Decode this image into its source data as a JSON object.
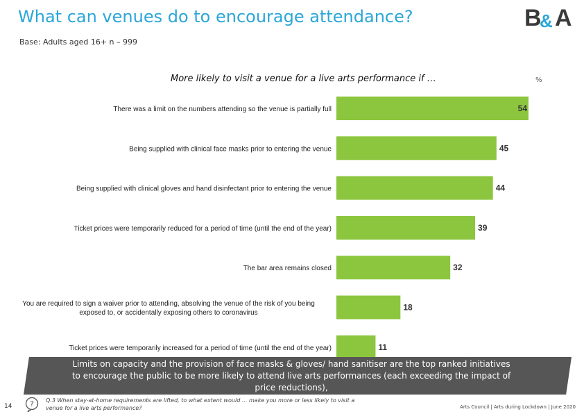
{
  "header": {
    "title": "What can venues do to encourage attendance?",
    "subtitle": "Base: Adults aged 16+ n – 999",
    "logo": "B&A"
  },
  "colors": {
    "title": "#2aa7d8",
    "bar": "#8cc63f",
    "callout": "#565656"
  },
  "chart_data": {
    "type": "bar",
    "orientation": "horizontal",
    "title": "More likely to visit a venue for a live arts performance if …",
    "unit_label": "%",
    "xlim": [
      0,
      54
    ],
    "categories": [
      "There was a limit on the numbers attending so the venue is partially full",
      "Being supplied with clinical face masks prior to entering the venue",
      "Being supplied with clinical gloves and hand disinfectant prior to entering the venue",
      "Ticket prices were temporarily reduced for a period of time (until the end of the year)",
      "The bar area remains closed",
      "You are required to sign a waiver prior to attending, absolving the venue of the risk of you being exposed to, or accidentally exposing others to coronavirus",
      "Ticket prices were temporarily increased for a period of time (until the end of the year)"
    ],
    "category_lines": [
      [
        "There was a limit on the numbers attending so the venue is partially full"
      ],
      [
        "Being supplied with clinical face masks prior to entering the venue"
      ],
      [
        "Being supplied with clinical gloves and hand disinfectant prior to entering the venue"
      ],
      [
        "Ticket prices were temporarily reduced for a period of time (until the end of the year)"
      ],
      [
        "The bar area remains closed"
      ],
      [
        "You are required to sign a waiver prior to attending, absolving the venue of the risk of you being",
        "exposed to, or accidentally exposing others to coronavirus"
      ],
      [
        "Ticket prices were temporarily increased for a period of time (until the end of the year)"
      ]
    ],
    "values": [
      54,
      45,
      44,
      39,
      32,
      18,
      11
    ],
    "xlabel": "",
    "ylabel": ""
  },
  "callout": {
    "text": "Limits on capacity and the provision of face masks & gloves/ hand sanitiser are the top ranked initiatives to encourage the public to be more likely to attend live arts performances (each exceeding the impact of price reductions),"
  },
  "footer": {
    "page_number": "14",
    "question": "Q.3 When stay-at-home requirements are lifted, to what extent would ... make you more or less likely to visit a venue for a live arts performance?",
    "source": "Arts Council | Arts during Lockdown | June 2020",
    "icon": "question-icon"
  }
}
